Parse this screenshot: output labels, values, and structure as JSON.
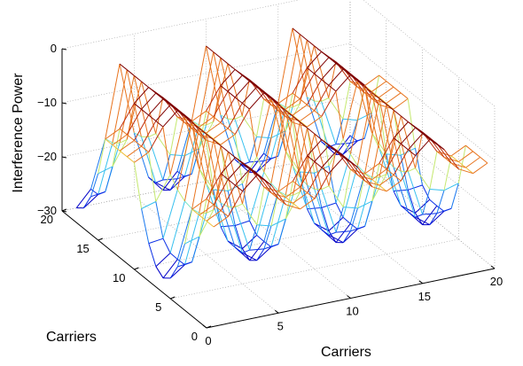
{
  "chart_data": {
    "type": "surface",
    "title": "",
    "xlabel": "Carriers",
    "ylabel": "Carriers",
    "zlabel": "Interference Power",
    "xlim": [
      0,
      20
    ],
    "ylim": [
      0,
      20
    ],
    "zlim": [
      -30,
      0
    ],
    "x_ticks": [
      "0",
      "5",
      "10",
      "15",
      "20"
    ],
    "y_ticks": [
      "0",
      "5",
      "10",
      "15",
      "20"
    ],
    "z_ticks": [
      "0",
      "−10",
      "−20",
      "−30"
    ],
    "z_tick_values": [
      0,
      -10,
      -20,
      -30
    ],
    "grid": true,
    "colormap": [
      "#0000c8",
      "#0a2fe6",
      "#1a78ef",
      "#36c0ef",
      "#7fe6c7",
      "#c4e86f",
      "#f0c03c",
      "#e8741f",
      "#c0300d",
      "#7f0000"
    ],
    "surface": {
      "description_free": true,
      "x_range": [
        1,
        20
      ],
      "y_range": [
        1,
        20
      ],
      "notch_centers_x": [
        1,
        7,
        13,
        19
      ],
      "notch_centers_y": [
        8,
        20
      ],
      "notch_depth_min": -30,
      "peak_max": -5
    }
  }
}
